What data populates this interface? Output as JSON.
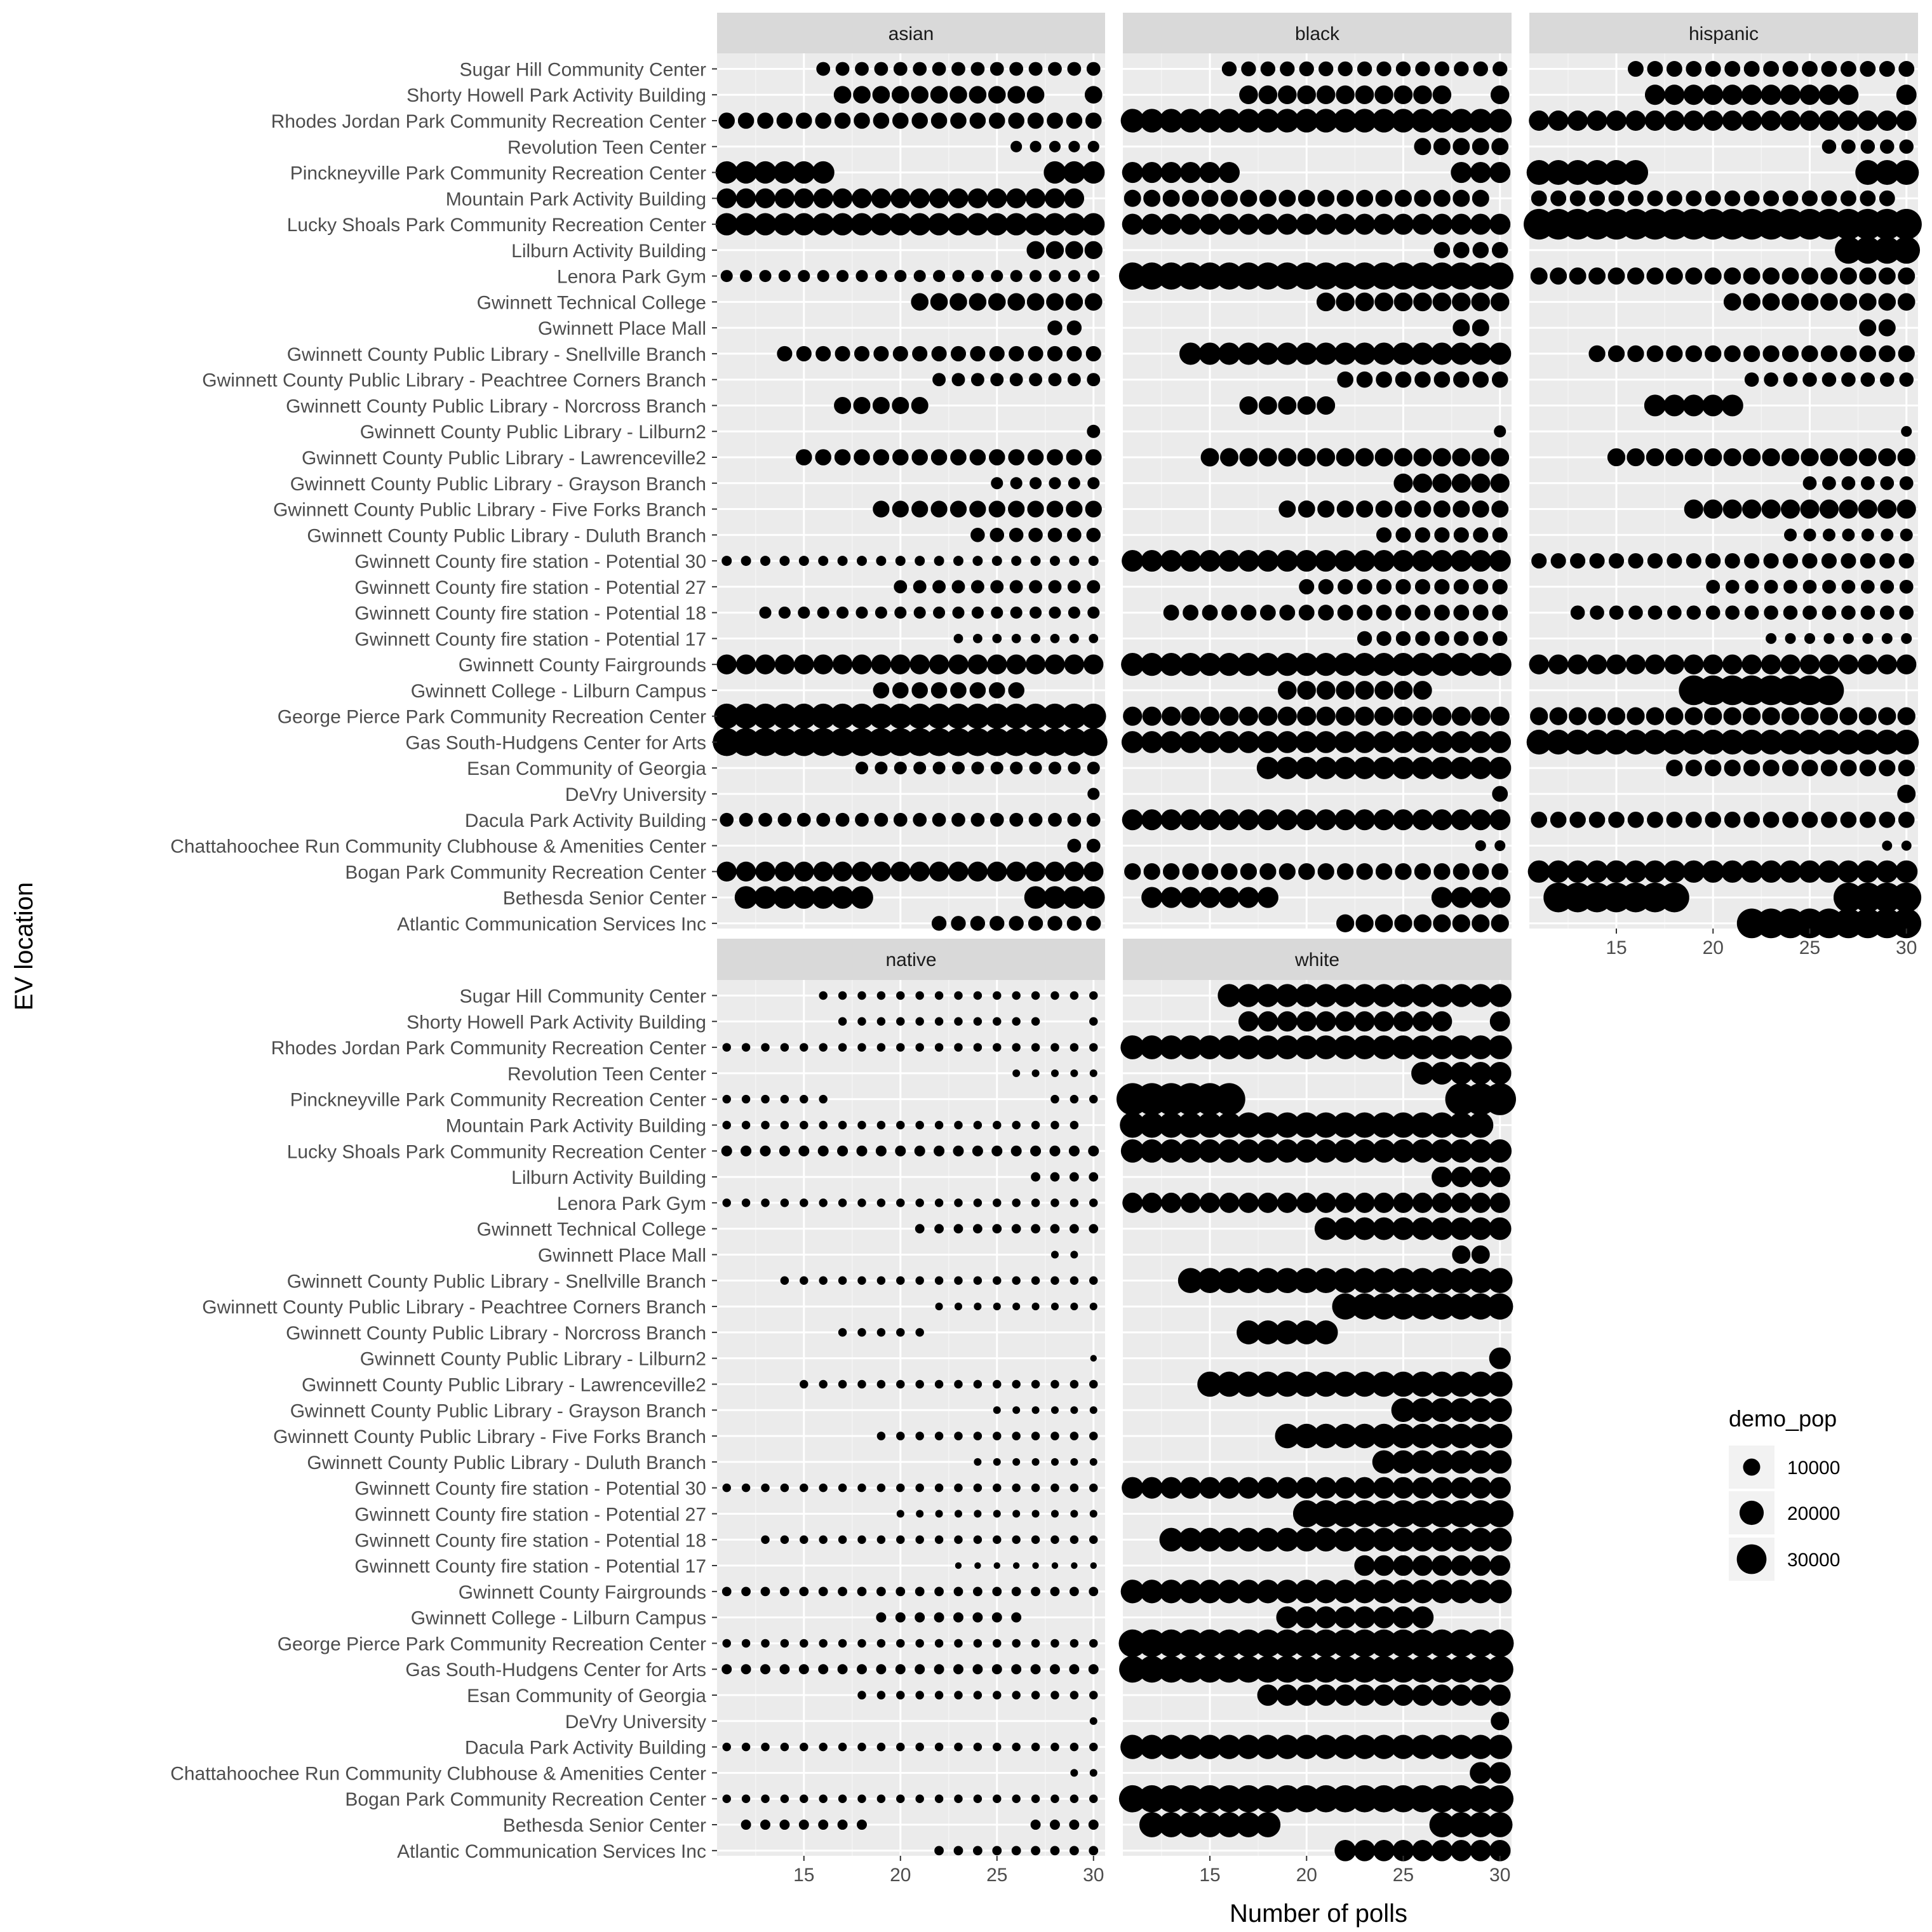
{
  "chart_data": {
    "type": "scatter",
    "title": "",
    "xlabel": "Number of polls",
    "ylabel": "EV location",
    "xlim": [
      10.5,
      30.6
    ],
    "x_ticks": [
      15,
      20,
      25,
      30
    ],
    "grid": true,
    "legend": {
      "title": "demo_pop",
      "placement": "right",
      "entries": [
        {
          "label": "10000",
          "value": 10000
        },
        {
          "label": "20000",
          "value": 20000
        },
        {
          "label": "30000",
          "value": 30000
        }
      ]
    },
    "locations": [
      "Sugar Hill Community Center",
      "Shorty Howell Park Activity Building",
      "Rhodes Jordan Park Community Recreation Center",
      "Revolution Teen Center",
      "Pinckneyville Park Community Recreation Center",
      "Mountain Park Activity Building",
      "Lucky Shoals Park Community Recreation Center",
      "Lilburn Activity Building",
      "Lenora Park Gym",
      "Gwinnett Technical College",
      "Gwinnett Place Mall",
      "Gwinnett County Public Library - Snellville Branch",
      "Gwinnett County Public Library - Peachtree Corners Branch",
      "Gwinnett County Public Library - Norcross Branch",
      "Gwinnett County Public Library - Lilburn2",
      "Gwinnett County Public Library - Lawrenceville2",
      "Gwinnett County Public Library - Grayson Branch",
      "Gwinnett County Public Library - Five Forks Branch",
      "Gwinnett County Public Library - Duluth Branch",
      "Gwinnett County fire station - Potential 30",
      "Gwinnett County fire station - Potential 27",
      "Gwinnett County fire station - Potential 18",
      "Gwinnett County fire station - Potential 17",
      "Gwinnett County Fairgrounds",
      "Gwinnett College - Lilburn Campus",
      "George Pierce Park Community Recreation Center",
      "Gas South-Hudgens Center for Arts",
      "Esan Community of Georgia",
      "DeVry University",
      "Dacula Park Activity Building",
      "Chattahoochee Run Community Clubhouse & Amenities Center",
      "Bogan Park Community Recreation Center",
      "Bethesda Senior Center",
      "Atlantic Communication Services Inc"
    ],
    "poll_ranges": [
      {
        "location": "Sugar Hill Community Center",
        "segments": [
          [
            16,
            30
          ]
        ]
      },
      {
        "location": "Shorty Howell Park Activity Building",
        "segments": [
          [
            17,
            27
          ],
          [
            30,
            30
          ]
        ]
      },
      {
        "location": "Rhodes Jordan Park Community Recreation Center",
        "segments": [
          [
            11,
            30
          ]
        ]
      },
      {
        "location": "Revolution Teen Center",
        "segments": [
          [
            26,
            30
          ]
        ]
      },
      {
        "location": "Pinckneyville Park Community Recreation Center",
        "segments": [
          [
            11,
            16
          ],
          [
            28,
            30
          ]
        ]
      },
      {
        "location": "Mountain Park Activity Building",
        "segments": [
          [
            11,
            29
          ]
        ]
      },
      {
        "location": "Lucky Shoals Park Community Recreation Center",
        "segments": [
          [
            11,
            30
          ]
        ]
      },
      {
        "location": "Lilburn Activity Building",
        "segments": [
          [
            27,
            30
          ]
        ]
      },
      {
        "location": "Lenora Park Gym",
        "segments": [
          [
            11,
            30
          ]
        ]
      },
      {
        "location": "Gwinnett Technical College",
        "segments": [
          [
            21,
            30
          ]
        ]
      },
      {
        "location": "Gwinnett Place Mall",
        "segments": [
          [
            28,
            29
          ]
        ]
      },
      {
        "location": "Gwinnett County Public Library - Snellville Branch",
        "segments": [
          [
            14,
            30
          ]
        ]
      },
      {
        "location": "Gwinnett County Public Library - Peachtree Corners Branch",
        "segments": [
          [
            22,
            30
          ]
        ]
      },
      {
        "location": "Gwinnett County Public Library - Norcross Branch",
        "segments": [
          [
            17,
            21
          ]
        ]
      },
      {
        "location": "Gwinnett County Public Library - Lilburn2",
        "segments": [
          [
            30,
            30
          ]
        ]
      },
      {
        "location": "Gwinnett County Public Library - Lawrenceville2",
        "segments": [
          [
            15,
            30
          ]
        ]
      },
      {
        "location": "Gwinnett County Public Library - Grayson Branch",
        "segments": [
          [
            25,
            30
          ]
        ]
      },
      {
        "location": "Gwinnett County Public Library - Five Forks Branch",
        "segments": [
          [
            19,
            30
          ]
        ]
      },
      {
        "location": "Gwinnett County Public Library - Duluth Branch",
        "segments": [
          [
            24,
            30
          ]
        ]
      },
      {
        "location": "Gwinnett County fire station - Potential 30",
        "segments": [
          [
            11,
            30
          ]
        ]
      },
      {
        "location": "Gwinnett County fire station - Potential 27",
        "segments": [
          [
            20,
            30
          ]
        ]
      },
      {
        "location": "Gwinnett County fire station - Potential 18",
        "segments": [
          [
            13,
            30
          ]
        ]
      },
      {
        "location": "Gwinnett County fire station - Potential 17",
        "segments": [
          [
            23,
            30
          ]
        ]
      },
      {
        "location": "Gwinnett County Fairgrounds",
        "segments": [
          [
            11,
            30
          ]
        ]
      },
      {
        "location": "Gwinnett College - Lilburn Campus",
        "segments": [
          [
            19,
            26
          ]
        ]
      },
      {
        "location": "George Pierce Park Community Recreation Center",
        "segments": [
          [
            11,
            30
          ]
        ]
      },
      {
        "location": "Gas South-Hudgens Center for Arts",
        "segments": [
          [
            11,
            30
          ]
        ]
      },
      {
        "location": "Esan Community of Georgia",
        "segments": [
          [
            18,
            30
          ]
        ]
      },
      {
        "location": "DeVry University",
        "segments": [
          [
            30,
            30
          ]
        ]
      },
      {
        "location": "Dacula Park Activity Building",
        "segments": [
          [
            11,
            30
          ]
        ]
      },
      {
        "location": "Chattahoochee Run Community Clubhouse & Amenities Center",
        "segments": [
          [
            29,
            30
          ]
        ]
      },
      {
        "location": "Bogan Park Community Recreation Center",
        "segments": [
          [
            11,
            30
          ]
        ]
      },
      {
        "location": "Bethesda Senior Center",
        "segments": [
          [
            12,
            18
          ],
          [
            27,
            30
          ]
        ]
      },
      {
        "location": "Atlantic Communication Services Inc",
        "segments": [
          [
            22,
            30
          ]
        ]
      }
    ],
    "panels": [
      {
        "name": "asian",
        "dot_pop": [
          6500,
          10500,
          9000,
          4500,
          17000,
          13500,
          17000,
          11000,
          5000,
          10500,
          7500,
          8000,
          6000,
          10000,
          6000,
          9000,
          5000,
          9500,
          7000,
          3500,
          6000,
          5000,
          3000,
          13500,
          9000,
          21500,
          26500,
          5500,
          5000,
          6500,
          6500,
          13500,
          17500,
          7500
        ]
      },
      {
        "name": "black",
        "dot_pop": [
          7500,
          12000,
          19000,
          10000,
          15000,
          10000,
          15000,
          9000,
          25000,
          12000,
          10000,
          17000,
          9000,
          11500,
          5000,
          11500,
          12500,
          10000,
          8000,
          16000,
          8000,
          8500,
          7500,
          18000,
          12000,
          12500,
          16500,
          17000,
          8500,
          15000,
          4000,
          9500,
          15000,
          11000
        ]
      },
      {
        "name": "hispanic",
        "dot_pop": [
          8500,
          14000,
          14000,
          7000,
          21000,
          8500,
          32000,
          25000,
          10000,
          10500,
          10000,
          9500,
          7000,
          16000,
          4000,
          11000,
          6500,
          12500,
          5500,
          8000,
          6500,
          7000,
          4000,
          13500,
          30000,
          11000,
          21000,
          9500,
          11500,
          9000,
          3500,
          17000,
          30000,
          30000
        ]
      },
      {
        "name": "native",
        "dot_pop": [
          2500,
          2500,
          2500,
          2000,
          2500,
          2500,
          4000,
          3000,
          2500,
          3000,
          2000,
          2500,
          2000,
          2500,
          1500,
          2500,
          2000,
          2500,
          2000,
          2500,
          2000,
          2500,
          1500,
          3000,
          3500,
          2500,
          3500,
          2500,
          2000,
          2500,
          2000,
          2500,
          3500,
          3000
        ]
      },
      {
        "name": "white",
        "dot_pop": [
          18000,
          14000,
          19500,
          17500,
          35000,
          22000,
          18500,
          14500,
          14000,
          17500,
          11500,
          21500,
          23500,
          19500,
          16000,
          21500,
          19500,
          20500,
          18500,
          16000,
          25000,
          19000,
          14500,
          19000,
          16500,
          26000,
          24500,
          15500,
          11500,
          20000,
          16000,
          25000,
          21500,
          15500
        ]
      }
    ]
  }
}
